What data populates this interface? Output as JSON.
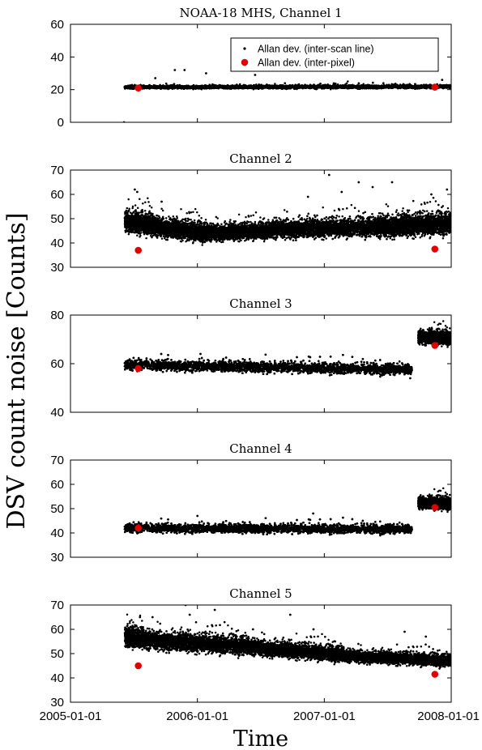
{
  "figure": {
    "ylabel": "DSV count noise [Counts]",
    "xlabel": "Time",
    "x_ticks": [
      "2005-01-01",
      "2006-01-01",
      "2007-01-01",
      "2008-01-01"
    ],
    "legend": [
      "Allan dev. (inter-scan line)",
      "Allan dev. (inter-pixel)"
    ],
    "colors": {
      "scanline": "#000000",
      "pixel": "#e00000",
      "axis": "#000000"
    }
  },
  "chart_data": [
    {
      "type": "scatter",
      "title": "NOAA-18 MHS, Channel 1",
      "ylim": [
        0,
        60
      ],
      "yticks": [
        0,
        20,
        40,
        60
      ],
      "x_range": [
        "2005-01-01",
        "2008-01-01"
      ],
      "legend_position": "top-right",
      "series": [
        {
          "name": "Allan dev. (inter-scan line)",
          "band": {
            "start": "2005-06-06",
            "end": "2008-01-01",
            "segments": [
              {
                "start": "2005-06-06",
                "end": "2008-01-01",
                "center_start": 21.5,
                "center_end": 21.8,
                "spread": 0.8
              }
            ]
          },
          "outliers": [
            {
              "x": "2005-06-04",
              "y": 0
            },
            {
              "x": "2005-09-02",
              "y": 27
            },
            {
              "x": "2005-10-28",
              "y": 32
            },
            {
              "x": "2005-11-25",
              "y": 32
            },
            {
              "x": "2006-01-26",
              "y": 30
            },
            {
              "x": "2006-06-16",
              "y": 29
            },
            {
              "x": "2007-12-06",
              "y": 26
            }
          ]
        },
        {
          "name": "Allan dev. (inter-pixel)",
          "points": [
            {
              "x": "2005-07-15",
              "y": 21
            },
            {
              "x": "2007-11-15",
              "y": 21.5
            }
          ]
        }
      ]
    },
    {
      "type": "scatter",
      "title": "Channel 2",
      "ylim": [
        30,
        70
      ],
      "yticks": [
        30,
        40,
        50,
        60,
        70
      ],
      "x_range": [
        "2005-01-01",
        "2008-01-01"
      ],
      "series": [
        {
          "name": "Allan dev. (inter-scan line)",
          "band": {
            "start": "2005-06-06",
            "end": "2008-01-01",
            "segments": [
              {
                "start": "2005-06-06",
                "end": "2005-09-01",
                "center_start": 49,
                "center_end": 47,
                "spread": 3.5
              },
              {
                "start": "2005-09-01",
                "end": "2006-02-01",
                "center_start": 46.5,
                "center_end": 44,
                "spread": 3
              },
              {
                "start": "2006-02-01",
                "end": "2006-08-01",
                "center_start": 44,
                "center_end": 45,
                "spread": 2.5
              },
              {
                "start": "2006-08-01",
                "end": "2007-06-01",
                "center_start": 45.5,
                "center_end": 46.5,
                "spread": 3
              },
              {
                "start": "2007-06-01",
                "end": "2008-01-01",
                "center_start": 46.5,
                "center_end": 48,
                "spread": 3.5
              }
            ]
          },
          "outliers": [
            {
              "x": "2005-07-05",
              "y": 62
            },
            {
              "x": "2005-07-12",
              "y": 61
            },
            {
              "x": "2005-09-20",
              "y": 57
            },
            {
              "x": "2006-11-15",
              "y": 59
            },
            {
              "x": "2007-01-15",
              "y": 68
            },
            {
              "x": "2007-02-20",
              "y": 61
            },
            {
              "x": "2007-04-10",
              "y": 65
            },
            {
              "x": "2007-05-20",
              "y": 63
            },
            {
              "x": "2007-07-15",
              "y": 65
            },
            {
              "x": "2007-11-05",
              "y": 60
            },
            {
              "x": "2007-12-20",
              "y": 62
            }
          ]
        },
        {
          "name": "Allan dev. (inter-pixel)",
          "points": [
            {
              "x": "2005-07-15",
              "y": 37
            },
            {
              "x": "2007-11-15",
              "y": 37.5
            }
          ]
        }
      ]
    },
    {
      "type": "scatter",
      "title": "Channel 3",
      "ylim": [
        40,
        80
      ],
      "yticks": [
        40,
        60,
        80
      ],
      "x_range": [
        "2005-01-01",
        "2008-01-01"
      ],
      "series": [
        {
          "name": "Allan dev. (inter-scan line)",
          "band": {
            "start": "2005-06-06",
            "end": "2008-01-01",
            "segments": [
              {
                "start": "2005-06-06",
                "end": "2007-09-10",
                "center_start": 59.5,
                "center_end": 57.5,
                "spread": 1.8
              },
              {
                "start": "2007-09-28",
                "end": "2008-01-01",
                "center_start": 71,
                "center_end": 70.5,
                "spread": 2.2
              }
            ]
          },
          "outliers": [
            {
              "x": "2007-09-05",
              "y": 54
            },
            {
              "x": "2006-01-10",
              "y": 64
            }
          ]
        },
        {
          "name": "Allan dev. (inter-pixel)",
          "points": [
            {
              "x": "2005-07-15",
              "y": 58
            },
            {
              "x": "2007-11-15",
              "y": 67.5
            }
          ]
        }
      ]
    },
    {
      "type": "scatter",
      "title": "Channel 4",
      "ylim": [
        30,
        70
      ],
      "yticks": [
        30,
        40,
        50,
        60,
        70
      ],
      "x_range": [
        "2005-01-01",
        "2008-01-01"
      ],
      "series": [
        {
          "name": "Allan dev. (inter-scan line)",
          "band": {
            "start": "2005-06-06",
            "end": "2008-01-01",
            "segments": [
              {
                "start": "2005-06-06",
                "end": "2007-09-10",
                "center_start": 42,
                "center_end": 41.5,
                "spread": 1.5
              },
              {
                "start": "2007-09-28",
                "end": "2008-01-01",
                "center_start": 52.5,
                "center_end": 52,
                "spread": 2
              }
            ]
          },
          "outliers": [
            {
              "x": "2006-01-01",
              "y": 47
            },
            {
              "x": "2006-11-30",
              "y": 48
            }
          ]
        },
        {
          "name": "Allan dev. (inter-pixel)",
          "points": [
            {
              "x": "2005-07-15",
              "y": 42
            },
            {
              "x": "2007-11-15",
              "y": 50.5
            }
          ]
        }
      ]
    },
    {
      "type": "scatter",
      "title": "Channel 5",
      "ylim": [
        30,
        70
      ],
      "yticks": [
        30,
        40,
        50,
        60,
        70
      ],
      "x_range": [
        "2005-01-01",
        "2008-01-01"
      ],
      "series": [
        {
          "name": "Allan dev. (inter-scan line)",
          "band": {
            "start": "2005-06-06",
            "end": "2008-01-01",
            "segments": [
              {
                "start": "2005-06-06",
                "end": "2005-08-01",
                "center_start": 57,
                "center_end": 56,
                "spread": 3.5
              },
              {
                "start": "2005-08-01",
                "end": "2006-06-01",
                "center_start": 55.5,
                "center_end": 53,
                "spread": 3
              },
              {
                "start": "2006-06-01",
                "end": "2007-03-01",
                "center_start": 52.5,
                "center_end": 49.5,
                "spread": 2.5
              },
              {
                "start": "2007-03-01",
                "end": "2008-01-01",
                "center_start": 49,
                "center_end": 47,
                "spread": 2
              }
            ]
          },
          "outliers": [
            {
              "x": "2005-07-20",
              "y": 65
            },
            {
              "x": "2005-08-25",
              "y": 65
            },
            {
              "x": "2005-11-28",
              "y": 70
            },
            {
              "x": "2005-12-10",
              "y": 66
            },
            {
              "x": "2006-02-20",
              "y": 68
            },
            {
              "x": "2006-06-10",
              "y": 60
            },
            {
              "x": "2006-09-25",
              "y": 66
            },
            {
              "x": "2006-12-01",
              "y": 60
            },
            {
              "x": "2007-02-01",
              "y": 55
            },
            {
              "x": "2007-08-20",
              "y": 59
            },
            {
              "x": "2007-10-20",
              "y": 57
            }
          ]
        },
        {
          "name": "Allan dev. (inter-pixel)",
          "points": [
            {
              "x": "2005-07-15",
              "y": 45
            },
            {
              "x": "2007-11-15",
              "y": 41.5
            }
          ]
        }
      ]
    }
  ]
}
